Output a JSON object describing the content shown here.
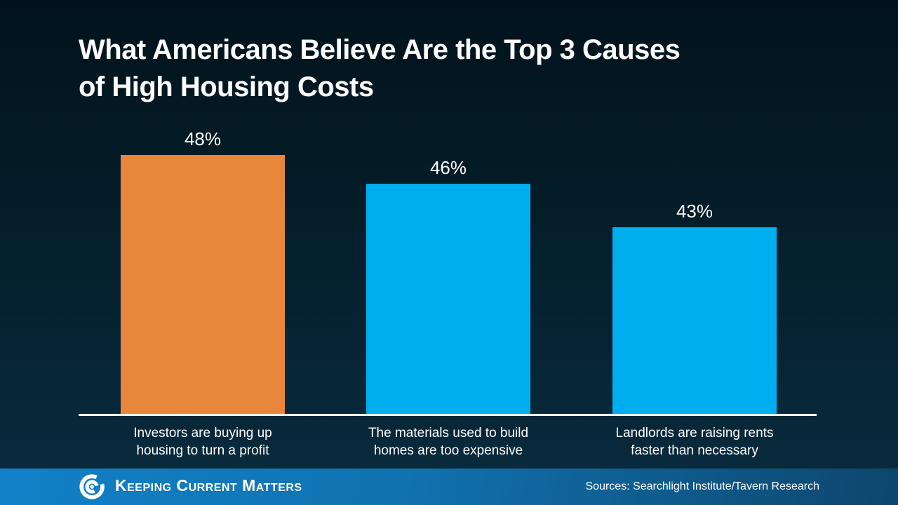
{
  "slide": {
    "title_lines": [
      "What Americans Believe Are the Top 3 Causes",
      "of High Housing Costs"
    ]
  },
  "chart_data": {
    "type": "bar",
    "title": "What Americans Believe Are the Top 3 Causes of High Housing Costs",
    "categories": [
      "Investors are buying up housing to turn a profit",
      "The materials used to build homes are too expensive",
      "Landlords are raising rents faster than necessary"
    ],
    "category_lines": [
      [
        "Investors are buying up",
        "housing to turn a profit"
      ],
      [
        "The materials used to build",
        "homes are too expensive"
      ],
      [
        "Landlords are raising rents",
        "faster than necessary"
      ]
    ],
    "values": [
      48,
      46,
      43
    ],
    "value_labels": [
      "48%",
      "46%",
      "43%"
    ],
    "bar_colors": [
      "#E8873B",
      "#00AEEF",
      "#00AEEF"
    ],
    "xlabel": "",
    "ylabel": "",
    "ylim": [
      30,
      48
    ],
    "grid": false,
    "legend": false
  },
  "footer": {
    "brand": "Keeping Current Matters",
    "logo_icon": "kcm-swirl-icon",
    "sources": "Sources: Searchlight Institute/Tavern Research"
  },
  "colors": {
    "background_top": "#02131C",
    "background_bottom": "#0B2D3F",
    "axis_line": "#FFFFFF",
    "text": "#FFFFFF",
    "footer_left": "#1181C7",
    "footer_right": "#0D466D",
    "orange": "#E8873B",
    "blue": "#00AEEF"
  }
}
